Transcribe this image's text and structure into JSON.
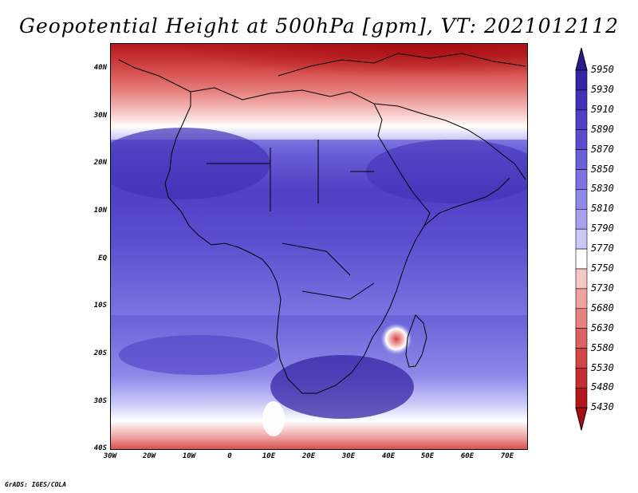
{
  "title": "Geopotential Height at 500hPa [gpm], VT: 2021012112",
  "lat_labels": [
    "40N",
    "30N",
    "20N",
    "10N",
    "EQ",
    "10S",
    "20S",
    "30S",
    "40S"
  ],
  "lon_labels": [
    "30W",
    "20W",
    "10W",
    "0",
    "10E",
    "20E",
    "30E",
    "40E",
    "50E",
    "60E",
    "70E"
  ],
  "colorbar": {
    "levels": [
      "5950",
      "5930",
      "5910",
      "5890",
      "5870",
      "5850",
      "5830",
      "5810",
      "5790",
      "5770",
      "5750",
      "5730",
      "5680",
      "5630",
      "5580",
      "5530",
      "5480",
      "5430"
    ],
    "colors": [
      "#2a1c8e",
      "#3725a6",
      "#4332b8",
      "#4f40c4",
      "#5a4ecf",
      "#6a60d8",
      "#7b73e0",
      "#8e89e8",
      "#a5a3ef",
      "#c9c8f6",
      "#ffffff",
      "#f6c7c5",
      "#efa3a1",
      "#e6827f",
      "#dc6260",
      "#d24646",
      "#c52d30",
      "#b4181d",
      "#a70d12"
    ]
  },
  "credit": "GrADS: IGES/COLA"
}
